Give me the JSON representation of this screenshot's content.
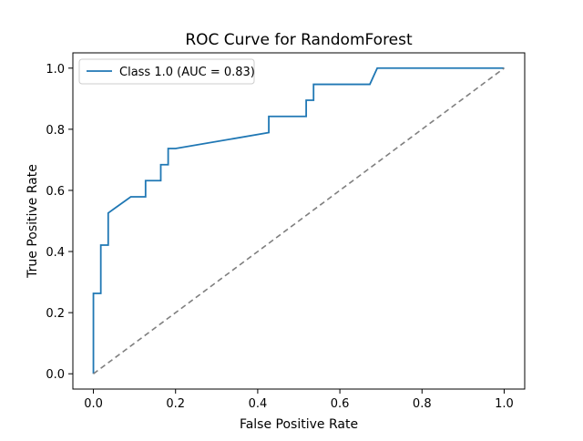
{
  "chart_data": {
    "type": "line",
    "title": "ROC Curve for RandomForest",
    "xlabel": "False Positive Rate",
    "ylabel": "True Positive Rate",
    "xlim": [
      -0.05,
      1.05
    ],
    "ylim": [
      -0.05,
      1.05
    ],
    "xticks": [
      0.0,
      0.2,
      0.4,
      0.6,
      0.8,
      1.0
    ],
    "yticks": [
      0.0,
      0.2,
      0.4,
      0.6,
      0.8,
      1.0
    ],
    "xtick_labels": [
      "0.0",
      "0.2",
      "0.4",
      "0.6",
      "0.8",
      "1.0"
    ],
    "ytick_labels": [
      "0.0",
      "0.2",
      "0.4",
      "0.6",
      "0.8",
      "1.0"
    ],
    "grid": false,
    "legend": {
      "position": "top-left",
      "entries": [
        "Class 1.0 (AUC = 0.83)"
      ]
    },
    "series": [
      {
        "name": "Class 1.0 (AUC = 0.83)",
        "style": "solid",
        "color": "#1f77b4",
        "x": [
          0.0,
          0.0,
          0.0,
          0.018,
          0.018,
          0.036,
          0.036,
          0.091,
          0.127,
          0.127,
          0.164,
          0.164,
          0.182,
          0.182,
          0.2,
          0.427,
          0.427,
          0.518,
          0.518,
          0.536,
          0.536,
          0.673,
          0.691,
          1.0
        ],
        "y": [
          0.0,
          0.263,
          0.263,
          0.263,
          0.421,
          0.421,
          0.526,
          0.579,
          0.579,
          0.632,
          0.632,
          0.684,
          0.684,
          0.737,
          0.737,
          0.789,
          0.842,
          0.842,
          0.895,
          0.895,
          0.947,
          0.947,
          1.0,
          1.0
        ]
      },
      {
        "name": "",
        "style": "dashed",
        "color": "#7f7f7f",
        "x": [
          0.0,
          1.0
        ],
        "y": [
          0.0,
          1.0
        ]
      }
    ]
  }
}
